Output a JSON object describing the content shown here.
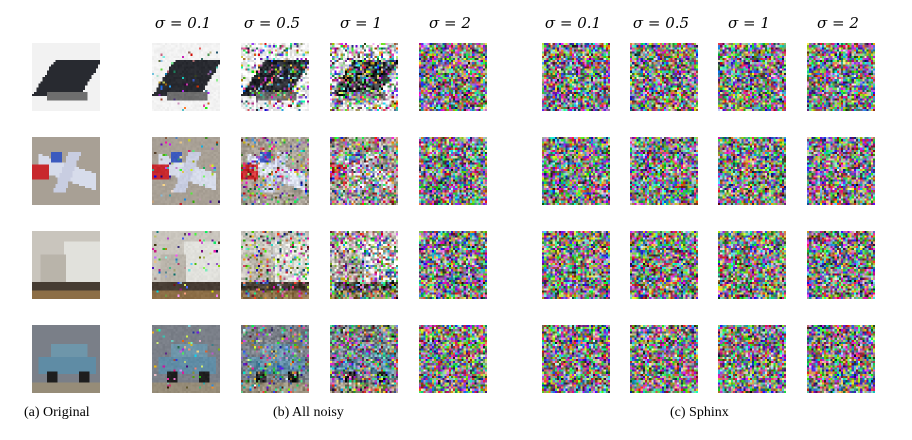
{
  "columns": {
    "all_noisy": [
      "σ = 0.1",
      "σ = 0.5",
      "σ = 1",
      "σ = 2"
    ],
    "sphinx": [
      "σ = 0.1",
      "σ = 0.5",
      "σ = 1",
      "σ = 2"
    ]
  },
  "captions": {
    "original": "(a) Original",
    "all_noisy": "(b) All noisy",
    "sphinx": "(c) Sphinx"
  },
  "rows": [
    {
      "id": "stealth-plane",
      "bg": "#f2f2f2"
    },
    {
      "id": "jet-plane",
      "bg": "#a8a095"
    },
    {
      "id": "truck",
      "bg": "#c9c5bd"
    },
    {
      "id": "car",
      "bg": "#7a7f88"
    }
  ],
  "noise_levels": [
    0.1,
    0.5,
    1,
    2
  ]
}
